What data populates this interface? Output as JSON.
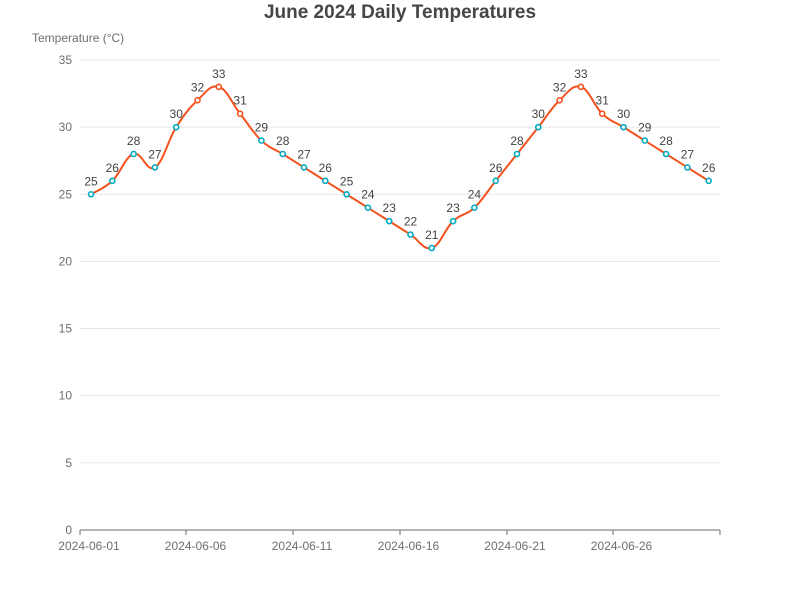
{
  "chart_data": {
    "type": "line",
    "title": "June 2024 Daily Temperatures",
    "ylabel": "Temperature (°C)",
    "xlabel": "",
    "ylim": [
      0,
      35
    ],
    "y_ticks": [
      0,
      5,
      10,
      15,
      20,
      25,
      30,
      35
    ],
    "x_tick_labels": [
      "2024-06-01",
      "2024-06-06",
      "2024-06-11",
      "2024-06-16",
      "2024-06-21",
      "2024-06-26"
    ],
    "x": [
      "2024-06-01",
      "2024-06-02",
      "2024-06-03",
      "2024-06-04",
      "2024-06-05",
      "2024-06-06",
      "2024-06-07",
      "2024-06-08",
      "2024-06-09",
      "2024-06-10",
      "2024-06-11",
      "2024-06-12",
      "2024-06-13",
      "2024-06-14",
      "2024-06-15",
      "2024-06-16",
      "2024-06-17",
      "2024-06-18",
      "2024-06-19",
      "2024-06-20",
      "2024-06-21",
      "2024-06-22",
      "2024-06-23",
      "2024-06-24",
      "2024-06-25",
      "2024-06-26",
      "2024-06-27",
      "2024-06-28",
      "2024-06-29",
      "2024-06-30"
    ],
    "series": [
      {
        "values": [
          25,
          26,
          28,
          27,
          30,
          32,
          33,
          31,
          29,
          28,
          27,
          26,
          25,
          24,
          23,
          22,
          21,
          23,
          24,
          26,
          28,
          30,
          32,
          33,
          31,
          30,
          29,
          28,
          27,
          26
        ]
      }
    ],
    "hot_threshold": 31,
    "grid": true,
    "legend": "none",
    "colors": {
      "line": "#f4511e",
      "point_normal": "#00acc1",
      "point_hot": "#f4511e",
      "grid": "#e6e6e6",
      "text": "#6e6e6e",
      "label": "#444444"
    }
  }
}
